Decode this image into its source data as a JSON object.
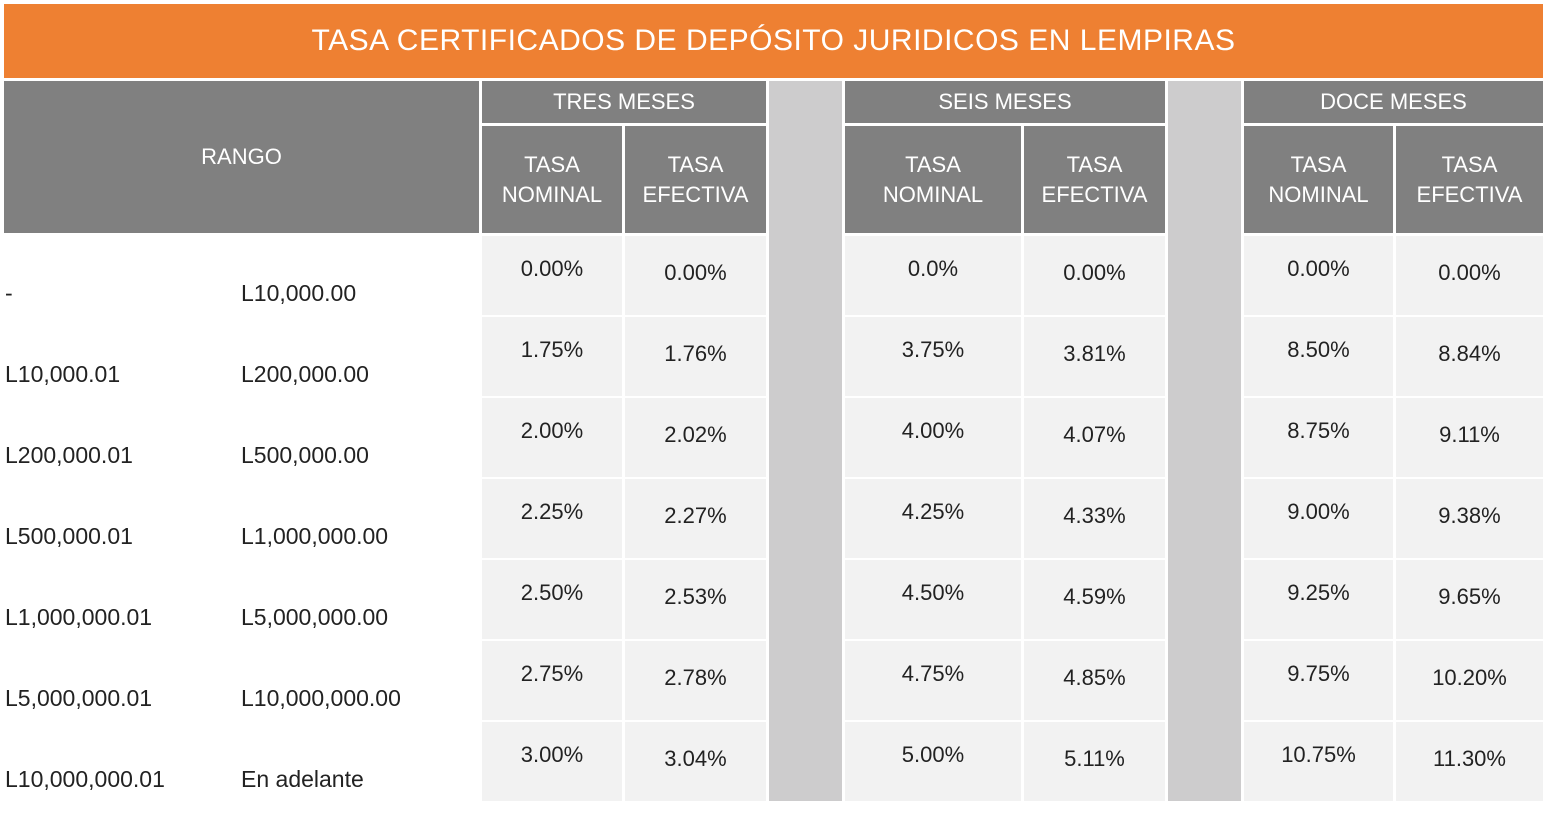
{
  "title": "TASA CERTIFICADOS  DE DEPÓSITO JURIDICOS EN LEMPIRAS",
  "colors": {
    "accent": "#ee8032",
    "header": "#808080",
    "spacer": "#cdcccd",
    "cell": "#f2f2f2"
  },
  "headers": {
    "rango": "RANGO",
    "periods": [
      "TRES MESES",
      "SEIS MESES",
      "DOCE MESES"
    ],
    "nominal_line1": "TASA",
    "nominal_line2": "NOMINAL",
    "efectiva_line1": "TASA",
    "efectiva_line2": "EFECTIVA"
  },
  "rows": [
    {
      "from": "-",
      "to": "L10,000.00",
      "rates": [
        "0.00%",
        "0.00%",
        "0.0%",
        "0.00%",
        "0.00%",
        "0.00%"
      ]
    },
    {
      "from": "L10,000.01",
      "to": "L200,000.00",
      "rates": [
        "1.75%",
        "1.76%",
        "3.75%",
        "3.81%",
        "8.50%",
        "8.84%"
      ]
    },
    {
      "from": "L200,000.01",
      "to": "L500,000.00",
      "rates": [
        "2.00%",
        "2.02%",
        "4.00%",
        "4.07%",
        "8.75%",
        "9.11%"
      ]
    },
    {
      "from": "L500,000.01",
      "to": "L1,000,000.00",
      "rates": [
        "2.25%",
        "2.27%",
        "4.25%",
        "4.33%",
        "9.00%",
        "9.38%"
      ]
    },
    {
      "from": "L1,000,000.01",
      "to": "L5,000,000.00",
      "rates": [
        "2.50%",
        "2.53%",
        "4.50%",
        "4.59%",
        "9.25%",
        "9.65%"
      ]
    },
    {
      "from": "L5,000,000.01",
      "to": "L10,000,000.00",
      "rates": [
        "2.75%",
        "2.78%",
        "4.75%",
        "4.85%",
        "9.75%",
        "10.20%"
      ]
    },
    {
      "from": "L10,000,000.01",
      "to": "En adelante",
      "rates": [
        "3.00%",
        "3.04%",
        "5.00%",
        "5.11%",
        "10.75%",
        "11.30%"
      ]
    }
  ]
}
